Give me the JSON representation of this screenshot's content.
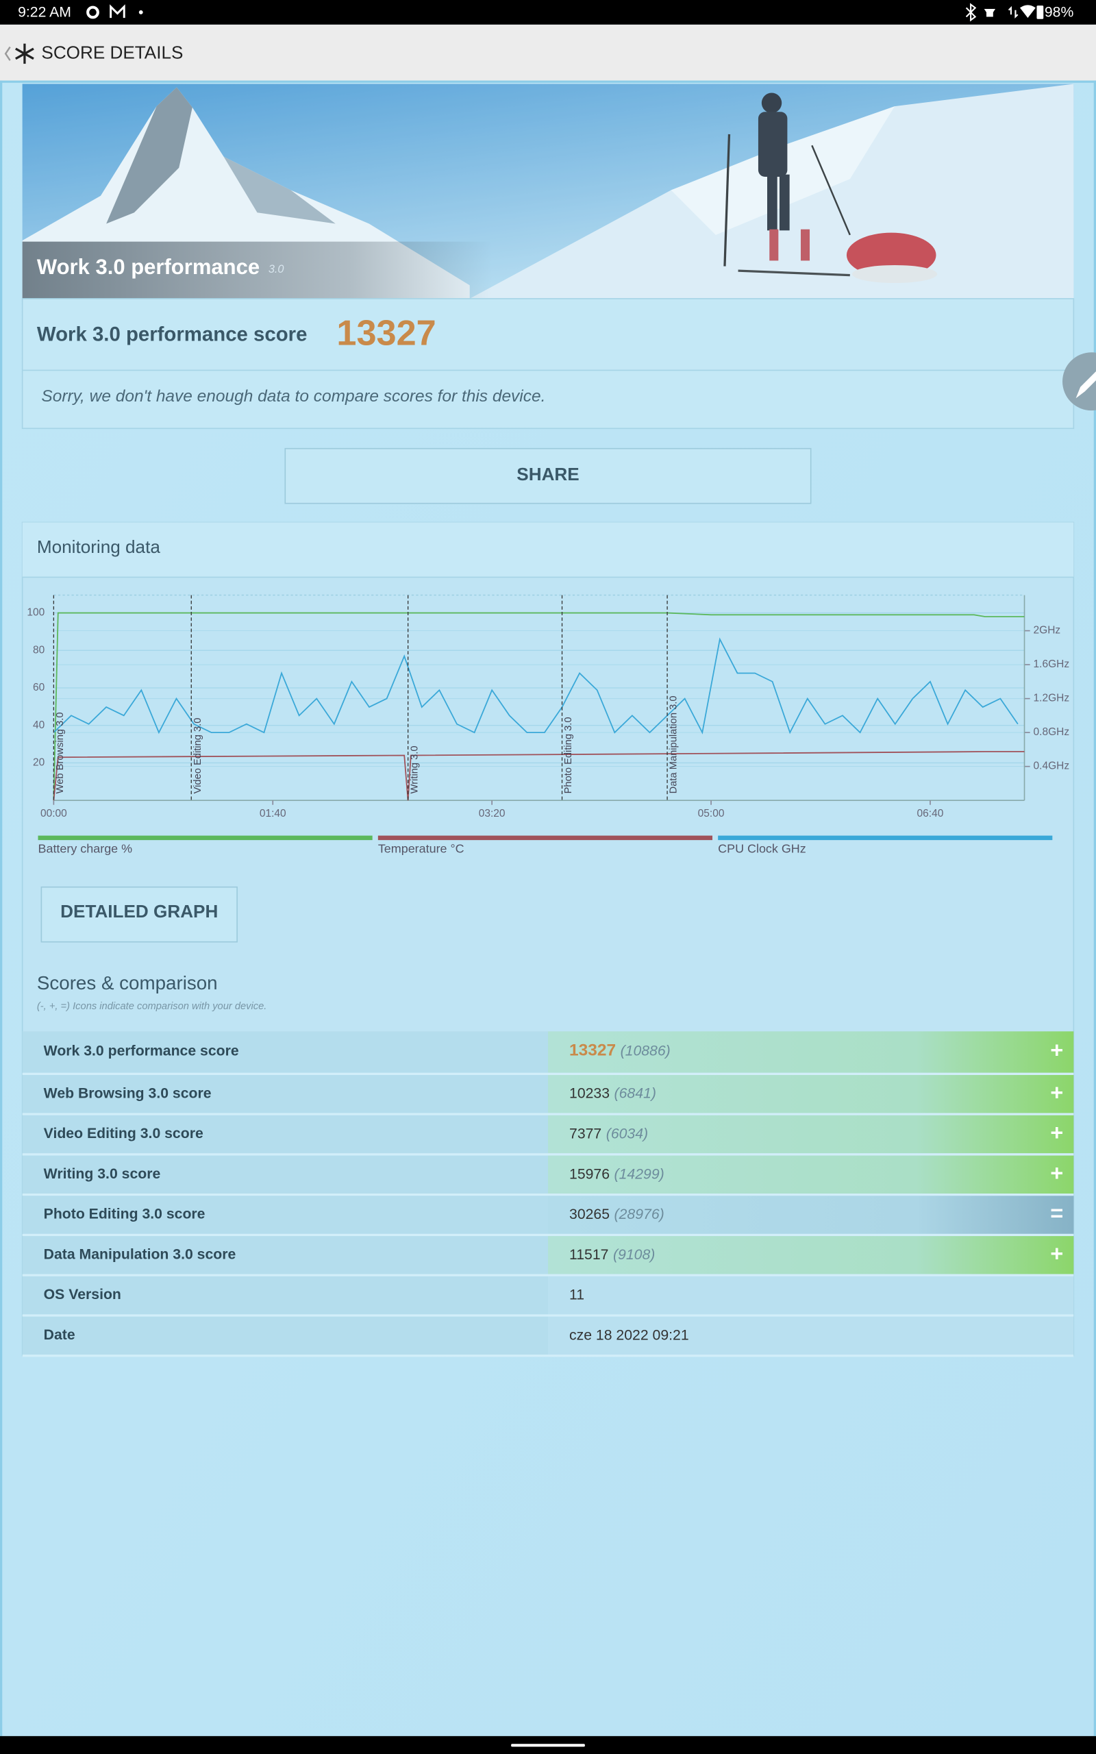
{
  "status_bar": {
    "time": "9:22 AM",
    "battery": "98%"
  },
  "app_bar": {
    "title": "SCORE DETAILS"
  },
  "banner": {
    "title": "Work 3.0 performance",
    "version": "3.0"
  },
  "score_card": {
    "label": "Work 3.0 performance score",
    "score": 13327,
    "note": "Sorry, we don't have enough data to compare scores for this device."
  },
  "share_button": "SHARE",
  "monitoring": {
    "title": "Monitoring data",
    "type": "line",
    "xlim": [
      0,
      443
    ],
    "xticks": [
      {
        "value": 0,
        "label": "00:00"
      },
      {
        "value": 100,
        "label": "01:40"
      },
      {
        "value": 200,
        "label": "03:20"
      },
      {
        "value": 300,
        "label": "05:00"
      },
      {
        "value": 400,
        "label": "06:40"
      }
    ],
    "ylim": [
      0,
      109.5
    ],
    "yticks": [
      20,
      40,
      60,
      80,
      100
    ],
    "y2lim": [
      0,
      2.42
    ],
    "y2ticks": [
      {
        "value": 0.4,
        "label": "0.4GHz"
      },
      {
        "value": 0.8,
        "label": "0.8GHz"
      },
      {
        "value": 1.2,
        "label": "1.2GHz"
      },
      {
        "value": 1.6,
        "label": "1.6GHz"
      },
      {
        "value": 2,
        "label": "2GHz"
      }
    ],
    "grid": true,
    "markers": [
      {
        "x": 0,
        "label": "Web Browsing 3.0"
      },
      {
        "x": 62.8,
        "label": "Video Editing 3.0"
      },
      {
        "x": 161.7,
        "label": "Writing 3.0"
      },
      {
        "x": 232,
        "label": "Photo Editing 3.0"
      },
      {
        "x": 280,
        "label": "Data Manipulation 3.0"
      }
    ],
    "series": [
      {
        "name": "Battery charge %",
        "color": "#5cb85c",
        "x": [
          0,
          2,
          280,
          300,
          420,
          425,
          443
        ],
        "values": [
          0,
          100,
          100,
          99,
          99,
          98,
          98
        ]
      },
      {
        "name": "Temperature °C",
        "color": "#a0525a",
        "x": [
          0,
          2,
          160,
          161.7,
          163,
          300,
          425,
          443
        ],
        "values": [
          0,
          23,
          24,
          0,
          24,
          25,
          26,
          26
        ]
      },
      {
        "name": "CPU Clock GHz",
        "color": "#3aa8d8",
        "axis": "y2",
        "x": [
          0,
          8,
          16,
          24,
          32,
          40,
          48,
          56,
          64,
          72,
          80,
          88,
          96,
          104,
          112,
          120,
          128,
          136,
          144,
          152,
          160,
          168,
          176,
          184,
          192,
          200,
          208,
          216,
          224,
          232,
          240,
          248,
          256,
          264,
          272,
          280,
          288,
          296,
          304,
          312,
          320,
          328,
          336,
          344,
          352,
          360,
          368,
          376,
          384,
          392,
          400,
          408,
          416,
          424,
          432,
          440
        ],
        "values": [
          0.8,
          1.0,
          0.9,
          1.1,
          1.0,
          1.3,
          0.8,
          1.2,
          0.9,
          0.8,
          0.8,
          0.9,
          0.8,
          1.5,
          1.0,
          1.2,
          0.9,
          1.4,
          1.1,
          1.2,
          1.7,
          1.1,
          1.3,
          0.9,
          0.8,
          1.3,
          1.0,
          0.8,
          0.8,
          1.1,
          1.5,
          1.3,
          0.8,
          1.0,
          0.8,
          1.0,
          1.2,
          0.8,
          1.9,
          1.5,
          1.5,
          1.4,
          0.8,
          1.2,
          0.9,
          1.0,
          0.8,
          1.2,
          0.9,
          1.2,
          1.4,
          0.9,
          1.3,
          1.1,
          1.2,
          0.9
        ]
      }
    ]
  },
  "detailed_graph_button": "DETAILED GRAPH",
  "scores": {
    "title": "Scores & comparison",
    "subtitle": "(-, +, =) Icons indicate comparison with your device.",
    "rows": [
      {
        "label": "Work 3.0 performance score",
        "value": 13327,
        "comparison": "(10886)",
        "icon": "+"
      },
      {
        "label": "Web Browsing 3.0 score",
        "value": 10233,
        "comparison": "(6841)",
        "icon": "+"
      },
      {
        "label": "Video Editing 3.0 score",
        "value": 7377,
        "comparison": "(6034)",
        "icon": "+"
      },
      {
        "label": "Writing 3.0 score",
        "value": 15976,
        "comparison": "(14299)",
        "icon": "+"
      },
      {
        "label": "Photo Editing 3.0 score",
        "value": 30265,
        "comparison": "(28976)",
        "icon": "="
      },
      {
        "label": "Data Manipulation 3.0 score",
        "value": 11517,
        "comparison": "(9108)",
        "icon": "+"
      },
      {
        "label": "OS Version",
        "value": 11
      },
      {
        "label": "Date",
        "value": "cze 18 2022 09:21"
      }
    ]
  }
}
